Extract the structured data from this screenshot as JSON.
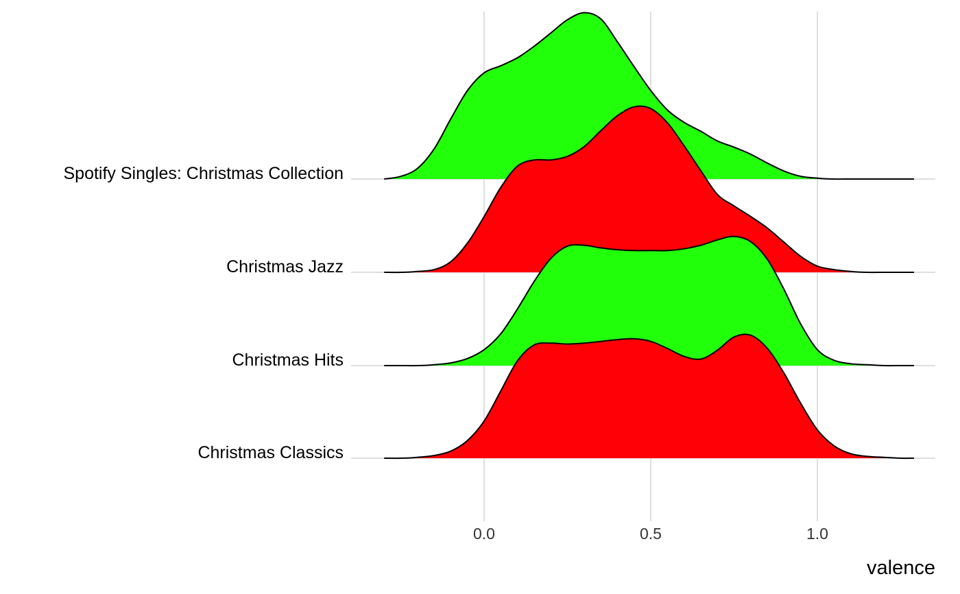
{
  "chart_data": {
    "type": "ridgeline",
    "title": "",
    "xlabel": "valence",
    "ylabel": "",
    "xlim": [
      -0.31,
      1.29
    ],
    "x_ticks": [
      0.0,
      0.5,
      1.0
    ],
    "x_tick_labels": [
      "0.0",
      "0.5",
      "1.0"
    ],
    "grid": true,
    "legend": "none",
    "categories": [
      "Spotify Singles: Christmas Collection",
      "Christmas Jazz",
      "Christmas Hits",
      "Christmas Classics"
    ],
    "series": [
      {
        "category": "Spotify Singles: Christmas Collection",
        "color": "#22ff0a",
        "x": [
          -0.3,
          -0.25,
          -0.2,
          -0.15,
          -0.1,
          -0.05,
          0.0,
          0.05,
          0.1,
          0.15,
          0.2,
          0.25,
          0.3,
          0.35,
          0.4,
          0.45,
          0.5,
          0.55,
          0.6,
          0.65,
          0.7,
          0.75,
          0.8,
          0.85,
          0.9,
          0.95,
          1.0,
          1.05,
          1.1,
          1.15,
          1.2,
          1.25,
          1.29
        ],
        "density": [
          0.0,
          0.03,
          0.12,
          0.34,
          0.68,
          1.0,
          1.2,
          1.28,
          1.37,
          1.5,
          1.65,
          1.8,
          1.88,
          1.81,
          1.55,
          1.27,
          1.0,
          0.78,
          0.64,
          0.54,
          0.43,
          0.36,
          0.28,
          0.18,
          0.09,
          0.03,
          0.01,
          0.0,
          0.0,
          0.0,
          0.0,
          0.0,
          0.0
        ]
      },
      {
        "category": "Christmas Jazz",
        "color": "#ff0006",
        "x": [
          -0.3,
          -0.25,
          -0.2,
          -0.15,
          -0.1,
          -0.05,
          0.0,
          0.05,
          0.1,
          0.15,
          0.2,
          0.25,
          0.3,
          0.35,
          0.4,
          0.45,
          0.5,
          0.55,
          0.6,
          0.65,
          0.7,
          0.75,
          0.8,
          0.85,
          0.9,
          0.95,
          1.0,
          1.05,
          1.1,
          1.15,
          1.2,
          1.25,
          1.29
        ],
        "density": [
          0.0,
          0.0,
          0.01,
          0.03,
          0.12,
          0.33,
          0.63,
          0.96,
          1.2,
          1.27,
          1.27,
          1.31,
          1.42,
          1.6,
          1.77,
          1.87,
          1.85,
          1.69,
          1.43,
          1.15,
          0.88,
          0.75,
          0.63,
          0.5,
          0.34,
          0.18,
          0.07,
          0.03,
          0.01,
          0.0,
          0.0,
          0.0,
          0.0
        ]
      },
      {
        "category": "Christmas Hits",
        "color": "#22ff0a",
        "x": [
          -0.3,
          -0.25,
          -0.2,
          -0.15,
          -0.1,
          -0.05,
          0.0,
          0.05,
          0.1,
          0.15,
          0.2,
          0.25,
          0.3,
          0.35,
          0.4,
          0.45,
          0.5,
          0.55,
          0.6,
          0.65,
          0.7,
          0.75,
          0.8,
          0.85,
          0.9,
          0.95,
          1.0,
          1.05,
          1.1,
          1.15,
          1.2,
          1.25,
          1.29
        ],
        "density": [
          0.0,
          0.0,
          0.0,
          0.01,
          0.03,
          0.08,
          0.18,
          0.36,
          0.64,
          0.95,
          1.21,
          1.35,
          1.36,
          1.33,
          1.31,
          1.3,
          1.3,
          1.3,
          1.32,
          1.36,
          1.42,
          1.46,
          1.4,
          1.2,
          0.86,
          0.47,
          0.18,
          0.06,
          0.02,
          0.01,
          0.0,
          0.0,
          0.0
        ]
      },
      {
        "category": "Christmas Classics",
        "color": "#ff0006",
        "x": [
          -0.3,
          -0.25,
          -0.2,
          -0.15,
          -0.1,
          -0.05,
          0.0,
          0.05,
          0.1,
          0.15,
          0.2,
          0.25,
          0.3,
          0.35,
          0.4,
          0.45,
          0.5,
          0.55,
          0.6,
          0.65,
          0.7,
          0.75,
          0.8,
          0.85,
          0.9,
          0.95,
          1.0,
          1.05,
          1.1,
          1.15,
          1.2,
          1.25,
          1.29
        ],
        "density": [
          0.0,
          0.0,
          0.01,
          0.03,
          0.08,
          0.2,
          0.42,
          0.76,
          1.1,
          1.28,
          1.3,
          1.29,
          1.3,
          1.32,
          1.34,
          1.35,
          1.32,
          1.24,
          1.15,
          1.12,
          1.22,
          1.37,
          1.39,
          1.24,
          0.96,
          0.62,
          0.32,
          0.14,
          0.05,
          0.02,
          0.01,
          0.0,
          0.0
        ]
      }
    ]
  }
}
